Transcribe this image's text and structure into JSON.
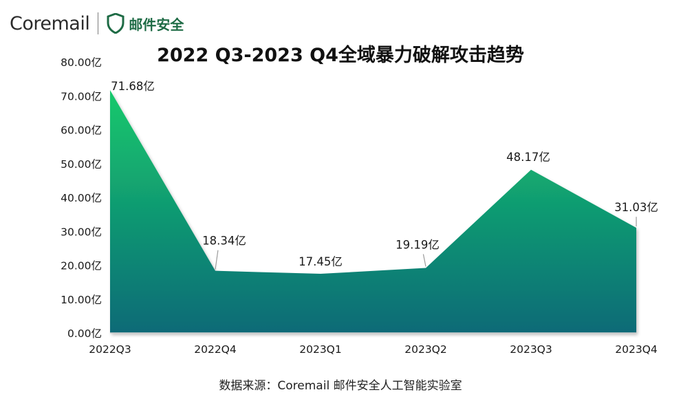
{
  "header": {
    "brand": "Coremail",
    "product": "邮件安全",
    "logo_icon": "shield-icon",
    "brand_color": "#1e6b45"
  },
  "footer": {
    "source": "数据来源：Coremail 邮件安全人工智能实验室"
  },
  "chart_data": {
    "type": "area",
    "title": "2022 Q3-2023 Q4全域暴力破解攻击趋势",
    "xlabel": "",
    "ylabel": "",
    "categories": [
      "2022Q3",
      "2022Q4",
      "2023Q1",
      "2023Q2",
      "2023Q3",
      "2023Q4"
    ],
    "values": [
      71.68,
      18.34,
      17.45,
      19.19,
      48.17,
      31.03
    ],
    "data_labels": [
      "71.68亿",
      "18.34亿",
      "17.45亿",
      "19.19亿",
      "48.17亿",
      "31.03亿"
    ],
    "y_ticks": [
      "0.00亿",
      "10.00亿",
      "20.00亿",
      "30.00亿",
      "40.00亿",
      "50.00亿",
      "60.00亿",
      "70.00亿",
      "80.00亿"
    ],
    "ylim": [
      0,
      80
    ],
    "grid": false,
    "legend": "none",
    "colors": {
      "fill_top": "#17c96c",
      "fill_bottom": "#0a6a77"
    }
  }
}
